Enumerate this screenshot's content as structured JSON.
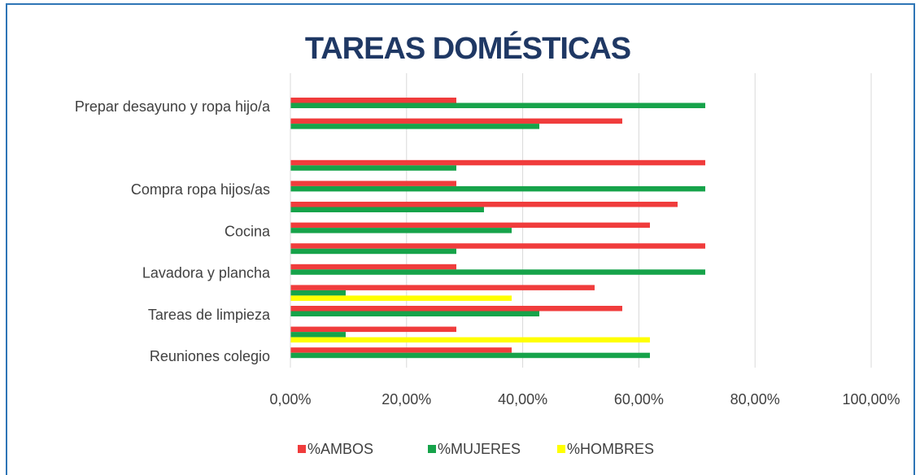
{
  "chart_data": {
    "type": "barh",
    "title": "TAREAS DOMÉSTICAS",
    "categories": [
      "Prepar desayuno y ropa hijo/a",
      null,
      null,
      null,
      "Compra ropa hijos/as",
      null,
      "Cocina",
      null,
      "Lavadora y plancha",
      null,
      "Tareas  de limpieza",
      null,
      "Reuniones colegio"
    ],
    "series": [
      {
        "name": "%AMBOS",
        "color": "#f03c3c",
        "values": [
          28.57,
          57.14,
          null,
          71.43,
          28.57,
          66.67,
          61.9,
          71.43,
          28.57,
          52.38,
          57.14,
          28.57,
          38.1
        ]
      },
      {
        "name": "%MUJERES",
        "color": "#16a34a",
        "values": [
          71.43,
          42.86,
          null,
          28.57,
          71.43,
          33.33,
          38.1,
          28.57,
          71.43,
          9.52,
          42.86,
          9.52,
          61.9
        ]
      },
      {
        "name": "%HOMBRES",
        "color": "#ffff00",
        "values": [
          0,
          0,
          null,
          0,
          0,
          0,
          0,
          0,
          0,
          38.1,
          0,
          61.9,
          0
        ]
      }
    ],
    "xlim": [
      0,
      100
    ],
    "xticks": [
      {
        "value": 0,
        "label": "0,00%"
      },
      {
        "value": 20,
        "label": "20,00%"
      },
      {
        "value": 40,
        "label": "40,00%"
      },
      {
        "value": 60,
        "label": "60,00%"
      },
      {
        "value": 80,
        "label": "80,00%"
      },
      {
        "value": 100,
        "label": "100,00%"
      }
    ],
    "grid": true,
    "legend": "bottom"
  }
}
